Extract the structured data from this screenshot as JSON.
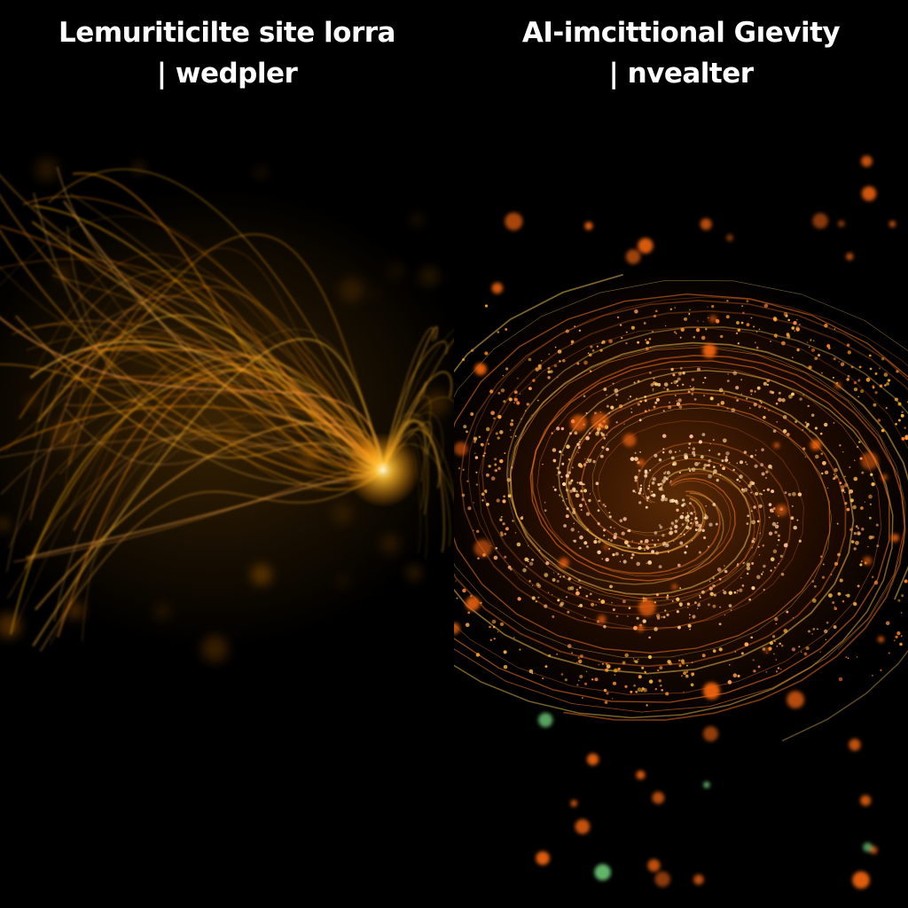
{
  "panels": {
    "left": {
      "caption_line_1": "Lemuriticilte site lorra",
      "caption_line_2": "| wedpler",
      "accent_color": "#ffb000",
      "visual": "glowing-filament-bundle"
    },
    "right": {
      "caption_line_1": "AI-imcittional Gıevity",
      "caption_line_2": "| nvealter",
      "accent_color": "#ff7a1a",
      "visual": "particle-spiral-vortex"
    }
  },
  "background_color": "#000000"
}
